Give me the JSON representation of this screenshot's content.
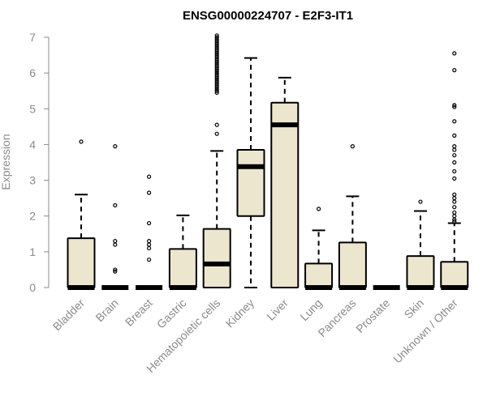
{
  "chart_data": {
    "type": "box",
    "title": "ENSG00000224707 - E2F3-IT1",
    "ylabel": "Expression",
    "xlabel": "",
    "ylim": [
      0,
      7
    ],
    "yticks": [
      "0",
      "1",
      "2",
      "3",
      "4",
      "5",
      "6",
      "7"
    ],
    "colors": {
      "box_fill": "#ede6cf",
      "box_stroke": "#000000",
      "axis": "#8a8a8a"
    },
    "categories": [
      "Bladder",
      "Brain",
      "Breast",
      "Gastric",
      "Hematopoietic cells",
      "Kidney",
      "Liver",
      "Lung",
      "Pancreas",
      "Prostate",
      "Skin",
      "Unknown / Other"
    ],
    "boxes": [
      {
        "name": "Bladder",
        "min": 0,
        "q1": 0,
        "median": 0,
        "q3": 1.38,
        "max": 2.6,
        "outliers": [
          4.08
        ]
      },
      {
        "name": "Brain",
        "min": 0,
        "q1": 0,
        "median": 0,
        "q3": 0,
        "max": 0,
        "outliers": [
          0.45,
          0.5,
          1.2,
          1.3,
          2.3,
          3.95
        ]
      },
      {
        "name": "Breast",
        "min": 0,
        "q1": 0,
        "median": 0,
        "q3": 0,
        "max": 0,
        "outliers": [
          0.78,
          1.1,
          1.2,
          1.3,
          1.8,
          2.65,
          3.1
        ]
      },
      {
        "name": "Gastric",
        "min": 0,
        "q1": 0,
        "median": 0,
        "q3": 1.08,
        "max": 2.02,
        "outliers": []
      },
      {
        "name": "Hematopoietic cells",
        "min": 0,
        "q1": 0,
        "median": 0.66,
        "q3": 1.64,
        "max": 3.82,
        "outliers": [
          4.3,
          4.55,
          5.45,
          5.5,
          5.55,
          5.6,
          5.65,
          5.7,
          5.75,
          5.8,
          5.85,
          5.9,
          5.95,
          6.0,
          6.05,
          6.1,
          6.15,
          6.2,
          6.25,
          6.3,
          6.35,
          6.4,
          6.45,
          6.5,
          6.55,
          6.6,
          6.65,
          6.7,
          6.75,
          6.8,
          6.85,
          6.9,
          6.95,
          7.0,
          7.05
        ]
      },
      {
        "name": "Kidney",
        "min": 0,
        "q1": 2.0,
        "median": 3.38,
        "q3": 3.85,
        "max": 6.42,
        "outliers": []
      },
      {
        "name": "Liver",
        "min": 0,
        "q1": 0,
        "median": 4.55,
        "q3": 5.17,
        "max": 5.87,
        "outliers": []
      },
      {
        "name": "Lung",
        "min": 0,
        "q1": 0,
        "median": 0,
        "q3": 0.67,
        "max": 1.6,
        "outliers": [
          2.2
        ]
      },
      {
        "name": "Pancreas",
        "min": 0,
        "q1": 0,
        "median": 0,
        "q3": 1.26,
        "max": 2.55,
        "outliers": [
          3.95
        ]
      },
      {
        "name": "Prostate",
        "min": 0,
        "q1": 0,
        "median": 0,
        "q3": 0,
        "max": 0,
        "outliers": []
      },
      {
        "name": "Skin",
        "min": 0,
        "q1": 0,
        "median": 0,
        "q3": 0.88,
        "max": 2.14,
        "outliers": [
          2.4
        ]
      },
      {
        "name": "Unknown / Other",
        "min": 0,
        "q1": 0,
        "median": 0,
        "q3": 0.72,
        "max": 1.8,
        "outliers": [
          1.85,
          1.9,
          2.0,
          2.1,
          2.25,
          2.4,
          2.5,
          2.6,
          3.05,
          3.25,
          3.5,
          3.7,
          3.85,
          3.95,
          4.25,
          4.65,
          5.05,
          5.1,
          6.08,
          6.55
        ]
      }
    ]
  }
}
